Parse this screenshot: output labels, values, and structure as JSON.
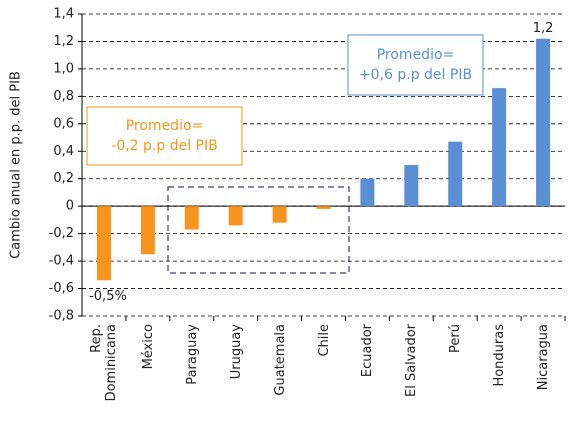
{
  "chart_data": {
    "type": "bar",
    "y_label": "Cambio anual en p.p. del PIB",
    "categories": [
      "Rep. Dominicana",
      "México",
      "Paraguay",
      "Uruguay",
      "Guatemala",
      "Chile",
      "Ecuador",
      "El Salvador",
      "Perú",
      "Honduras",
      "Nicaragua"
    ],
    "values": [
      -0.54,
      -0.35,
      -0.17,
      -0.14,
      -0.12,
      -0.02,
      0.2,
      0.3,
      0.47,
      0.86,
      1.22
    ],
    "value_labels": [
      "-0,5%",
      null,
      null,
      null,
      null,
      null,
      null,
      null,
      null,
      null,
      "1,2"
    ],
    "colors": [
      "#f7941d",
      "#f7941d",
      "#f7941d",
      "#f7941d",
      "#f7941d",
      "#f7941d",
      "#5b8fd4",
      "#5b8fd4",
      "#5b8fd4",
      "#5b8fd4",
      "#5b8fd4"
    ],
    "ylim": [
      -0.8,
      1.4
    ],
    "yticks": [
      {
        "value": -0.8,
        "label": "-0,8"
      },
      {
        "value": -0.6,
        "label": "-0,6"
      },
      {
        "value": -0.4,
        "label": "-0,4"
      },
      {
        "value": -0.2,
        "label": "-0,2"
      },
      0,
      {
        "value": 0.2,
        "label": "0,2"
      },
      {
        "value": 0.4,
        "label": "0,4"
      },
      {
        "value": 0.6,
        "label": "0,6"
      },
      {
        "value": 0.8,
        "label": "0,8"
      },
      {
        "value": 1.0,
        "label": "1,0"
      },
      {
        "value": 1.2,
        "label": "1,2"
      },
      {
        "value": 1.4,
        "label": "1,4"
      }
    ],
    "grid": true,
    "annotations": [
      {
        "lines": [
          "Promedio=",
          "-0,2 p.p del PIB"
        ],
        "color": "#f7941d"
      },
      {
        "lines": [
          "Promedio=",
          "+0,6 p.p del PIB"
        ],
        "color": "#5b8fd4"
      }
    ]
  }
}
